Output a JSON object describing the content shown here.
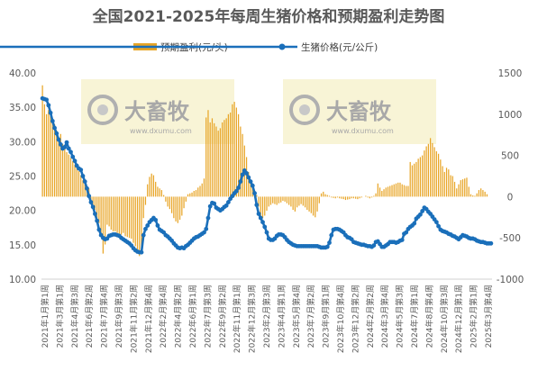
{
  "chart_data": {
    "type": "bar+line",
    "title": "全国2021-2025年每周生猪价格和预期盈利走势图",
    "legend_position": "top",
    "grid": false,
    "colors": {
      "bar": "#E8A526",
      "line": "#1A6FBA"
    },
    "series": [
      {
        "name": "预期盈利(元/头)",
        "type": "bar",
        "axis": "right",
        "values": [
          1350,
          1120,
          1000,
          1050,
          980,
          940,
          880,
          800,
          720,
          760,
          640,
          590,
          540,
          510,
          470,
          430,
          390,
          350,
          310,
          260,
          200,
          160,
          130,
          100,
          -80,
          -110,
          -160,
          -260,
          -320,
          -470,
          -690,
          -580,
          -340,
          -360,
          -400,
          -420,
          -420,
          -440,
          -450,
          -460,
          -440,
          -480,
          -490,
          -500,
          -510,
          -560,
          -600,
          -660,
          -720,
          -620,
          -260,
          -100,
          150,
          240,
          280,
          260,
          180,
          120,
          100,
          80,
          20,
          -60,
          -120,
          -150,
          -200,
          -260,
          -300,
          -320,
          -280,
          -230,
          -140,
          -60,
          30,
          40,
          50,
          70,
          80,
          110,
          130,
          160,
          220,
          960,
          1050,
          900,
          950,
          890,
          850,
          800,
          830,
          900,
          930,
          950,
          1000,
          1020,
          1120,
          1150,
          1080,
          1000,
          850,
          760,
          620,
          480,
          300,
          200,
          110,
          60,
          20,
          -120,
          -240,
          -260,
          -230,
          -170,
          -120,
          -100,
          -80,
          -90,
          -100,
          -80,
          -70,
          -50,
          -60,
          -80,
          -100,
          -120,
          -160,
          -180,
          -130,
          -110,
          -90,
          -110,
          -130,
          -160,
          -180,
          -200,
          -230,
          -250,
          -180,
          -80,
          40,
          60,
          30,
          20,
          10,
          -10,
          -15,
          -20,
          -10,
          -20,
          -25,
          -30,
          -40,
          -35,
          -30,
          -20,
          -20,
          -25,
          -30,
          -20,
          -10,
          0,
          10,
          -10,
          -20,
          -10,
          10,
          40,
          160,
          110,
          70,
          90,
          110,
          120,
          130,
          140,
          150,
          160,
          170,
          170,
          150,
          140,
          130,
          130,
          420,
          380,
          400,
          420,
          460,
          480,
          500,
          560,
          610,
          640,
          710,
          650,
          600,
          550,
          520,
          450,
          370,
          300,
          350,
          330,
          260,
          250,
          180,
          100,
          150,
          200,
          210,
          220,
          230,
          120,
          30,
          15,
          10,
          40,
          80,
          100,
          80,
          60,
          30
        ],
        "peak_note": ""
      },
      {
        "name": "生猪价格(元/公斤)",
        "type": "line",
        "axis": "left",
        "values": [
          36.3,
          36.2,
          36.1,
          35.3,
          34.2,
          33.0,
          32.0,
          31.2,
          30.3,
          29.6,
          29.0,
          29.2,
          29.9,
          29.0,
          28.5,
          27.8,
          27.2,
          26.5,
          26.1,
          25.9,
          25.0,
          24.2,
          23.2,
          22.1,
          21.2,
          20.5,
          19.5,
          18.5,
          17.2,
          16.4,
          16.0,
          15.8,
          15.9,
          16.3,
          16.4,
          16.5,
          16.5,
          16.4,
          16.3,
          16.0,
          15.8,
          15.6,
          15.4,
          15.2,
          14.9,
          14.5,
          14.2,
          14.0,
          13.9,
          13.9,
          16.4,
          17.3,
          17.8,
          18.3,
          18.6,
          18.9,
          18.6,
          17.8,
          17.2,
          17.0,
          16.8,
          16.4,
          16.2,
          15.9,
          15.6,
          15.2,
          14.9,
          14.6,
          14.5,
          14.6,
          14.5,
          14.8,
          15.0,
          15.3,
          15.6,
          15.9,
          16.1,
          16.2,
          16.4,
          16.6,
          16.8,
          17.3,
          18.9,
          20.6,
          21.1,
          21.0,
          20.4,
          20.2,
          20.0,
          20.2,
          20.5,
          20.7,
          21.2,
          21.7,
          22.1,
          22.5,
          22.8,
          23.3,
          24.2,
          25.2,
          25.8,
          25.4,
          24.8,
          24.2,
          23.6,
          22.5,
          20.8,
          19.5,
          18.9,
          18.3,
          17.6,
          16.8,
          15.9,
          15.7,
          15.7,
          15.9,
          16.3,
          16.5,
          16.5,
          16.4,
          16.1,
          15.7,
          15.4,
          15.2,
          15.0,
          14.9,
          14.8,
          14.8,
          14.8,
          14.8,
          14.8,
          14.8,
          14.8,
          14.8,
          14.8,
          14.8,
          14.8,
          14.7,
          14.6,
          14.6,
          14.6,
          14.7,
          15.3,
          16.4,
          17.2,
          17.3,
          17.3,
          17.2,
          17.0,
          16.8,
          16.4,
          16.1,
          16.0,
          15.8,
          15.4,
          15.3,
          15.2,
          15.1,
          15.0,
          15.0,
          14.9,
          14.8,
          14.8,
          14.7,
          14.9,
          15.4,
          15.5,
          15.1,
          14.7,
          14.7,
          14.9,
          15.1,
          15.4,
          15.4,
          15.4,
          15.3,
          15.4,
          15.6,
          15.7,
          16.6,
          16.8,
          17.3,
          17.6,
          17.8,
          18.1,
          18.8,
          19.1,
          19.4,
          19.9,
          20.4,
          20.2,
          19.8,
          19.5,
          19.1,
          18.7,
          18.3,
          17.7,
          17.2,
          17.0,
          16.9,
          16.8,
          16.6,
          16.5,
          16.3,
          16.2,
          16.0,
          15.8,
          16.1,
          16.4,
          16.3,
          16.2,
          16.0,
          15.9,
          15.9,
          15.8,
          15.6,
          15.5,
          15.4,
          15.4,
          15.3,
          15.2,
          15.2,
          15.2
        ]
      }
    ],
    "x_tick_labels": [
      "2021年1月第1周",
      "2021年3月第1周",
      "2021年4月第3周",
      "2021年6月第2周",
      "2021年7月第4周",
      "2021年9月第3周",
      "2021年11月第2周",
      "2021年12月第4周",
      "2022年2月第4周",
      "2022年4月第2周",
      "2022年6月第1周",
      "2022年7月第3周",
      "2022年9月第2周",
      "2022年11月第1周",
      "2022年12月第3周",
      "2023年2月第3周",
      "2023年4月第1周",
      "2023年5月第4周",
      "2023年7月第2周",
      "2023年9月第1周",
      "2023年10月第4周",
      "2023年12月第2周",
      "2024年2月第2周",
      "2024年3月第4周",
      "2024年5月第3周",
      "2024年7月第1周",
      "2024年8月第4周",
      "2024年10月第3周",
      "2024年12月第1周",
      "2025年2月第1周",
      "2025年3月第4周"
    ],
    "y_left": {
      "label": "",
      "ylim": [
        10,
        40
      ],
      "ticks": [
        "10.00",
        "15.00",
        "20.00",
        "25.00",
        "30.00",
        "35.00",
        "40.00"
      ]
    },
    "y_right": {
      "label": "",
      "ylim": [
        -1000,
        1500
      ],
      "ticks": [
        "-1000",
        "-500",
        "0",
        "500",
        "1000",
        "1500"
      ]
    }
  },
  "watermark": {
    "text": "大畜牧",
    "url": "www.dxumu.com"
  }
}
